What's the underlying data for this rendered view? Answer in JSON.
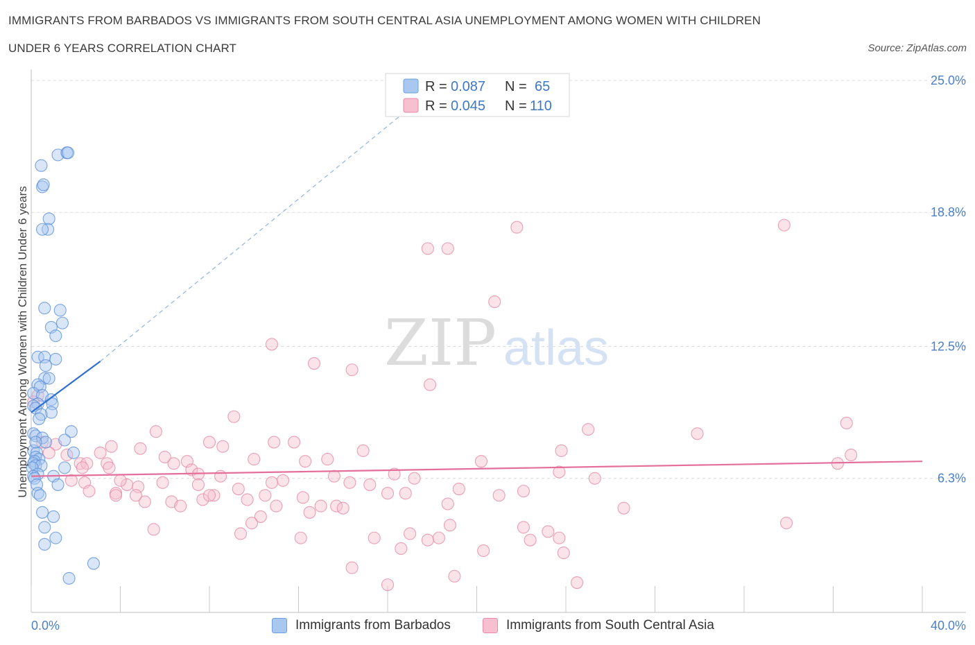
{
  "header": {
    "title_line1": "IMMIGRANTS FROM BARBADOS VS IMMIGRANTS FROM SOUTH CENTRAL ASIA UNEMPLOYMENT AMONG WOMEN WITH CHILDREN",
    "title_line2": "UNDER 6 YEARS CORRELATION CHART",
    "source": "Source: ZipAtlas.com"
  },
  "watermark": {
    "zip": "ZIP",
    "atlas": "atlas"
  },
  "legend_box": {
    "rows": [
      {
        "r_label": "R =",
        "r_value": "0.087",
        "n_label": "N =",
        "n_value": "65",
        "color": "#a9c8f0",
        "border": "#6a9fe0"
      },
      {
        "r_label": "R =",
        "r_value": "0.045",
        "n_label": "N =",
        "n_value": "110",
        "color": "#f7c0d0",
        "border": "#e98aa8"
      }
    ]
  },
  "colors": {
    "blue_fill": "#a9c8f0",
    "blue_stroke": "#5b8fd9",
    "blue_line": "#2f6fcf",
    "pink_fill": "#f7c0d0",
    "pink_stroke": "#e58aa8",
    "pink_line": "#e46f9a",
    "grid": "#dcdcdc",
    "tick_text": "#4a7fc9"
  },
  "chart_data": {
    "type": "scatter",
    "title": "IMMIGRANTS FROM BARBADOS VS IMMIGRANTS FROM SOUTH CENTRAL ASIA UNEMPLOYMENT AMONG WOMEN WITH CHILDREN UNDER 6 YEARS CORRELATION CHART",
    "xlabel": "",
    "ylabel": "Unemployment Among Women with Children Under 6 years",
    "xlim": [
      0,
      40
    ],
    "ylim": [
      0,
      25
    ],
    "x_tick_labels": [
      "0.0%",
      "40.0%"
    ],
    "y_ticks": [
      6.3,
      12.5,
      18.8,
      25.0
    ],
    "y_tick_labels": [
      "6.3%",
      "12.5%",
      "18.8%",
      "25.0%"
    ],
    "grid": true,
    "legend_position": "bottom",
    "series": [
      {
        "name": "Immigrants from Barbados",
        "color": "#a9c8f0",
        "trend": {
          "x": [
            0,
            3.1
          ],
          "y": [
            9.4,
            11.8
          ],
          "dashed_to": [
            18.5,
            25.0
          ]
        },
        "points": [
          [
            1.2,
            21.5
          ],
          [
            1.6,
            21.6
          ],
          [
            1.65,
            21.6
          ],
          [
            0.45,
            21.0
          ],
          [
            0.5,
            20.0
          ],
          [
            0.55,
            20.1
          ],
          [
            0.8,
            18.5
          ],
          [
            0.75,
            18.0
          ],
          [
            0.5,
            18.0
          ],
          [
            0.6,
            14.3
          ],
          [
            1.3,
            14.2
          ],
          [
            1.4,
            13.6
          ],
          [
            0.9,
            13.4
          ],
          [
            1.1,
            13.0
          ],
          [
            0.3,
            12.0
          ],
          [
            0.6,
            12.0
          ],
          [
            1.1,
            11.9
          ],
          [
            0.65,
            11.6
          ],
          [
            0.6,
            11.0
          ],
          [
            0.8,
            11.0
          ],
          [
            0.3,
            10.7
          ],
          [
            0.4,
            10.6
          ],
          [
            0.1,
            10.3
          ],
          [
            0.5,
            10.2
          ],
          [
            0.9,
            10.0
          ],
          [
            0.3,
            9.8
          ],
          [
            0.95,
            9.8
          ],
          [
            0.1,
            9.7
          ],
          [
            0.2,
            9.6
          ],
          [
            0.9,
            9.4
          ],
          [
            0.45,
            9.3
          ],
          [
            0.35,
            9.1
          ],
          [
            1.8,
            8.5
          ],
          [
            0.1,
            8.4
          ],
          [
            0.2,
            8.3
          ],
          [
            0.5,
            8.2
          ],
          [
            0.65,
            8.0
          ],
          [
            1.5,
            8.1
          ],
          [
            0.1,
            7.6
          ],
          [
            0.25,
            7.5
          ],
          [
            1.9,
            7.5
          ],
          [
            0.2,
            7.3
          ],
          [
            0.35,
            7.2
          ],
          [
            0.15,
            7.1
          ],
          [
            0.1,
            7.0
          ],
          [
            0.2,
            6.9
          ],
          [
            0.45,
            6.9
          ],
          [
            0.05,
            6.8
          ],
          [
            1.5,
            6.8
          ],
          [
            1.0,
            6.4
          ],
          [
            0.3,
            6.5
          ],
          [
            0.1,
            6.4
          ],
          [
            0.15,
            6.3
          ],
          [
            0.25,
            6.0
          ],
          [
            1.2,
            6.0
          ],
          [
            0.3,
            5.6
          ],
          [
            0.4,
            5.5
          ],
          [
            0.5,
            4.7
          ],
          [
            1.0,
            4.5
          ],
          [
            0.6,
            4.0
          ],
          [
            1.1,
            3.5
          ],
          [
            0.6,
            3.2
          ],
          [
            2.8,
            2.3
          ],
          [
            1.7,
            1.6
          ],
          [
            0.2,
            8.0
          ]
        ]
      },
      {
        "name": "Immigrants from South Central Asia",
        "color": "#f7c0d0",
        "trend": {
          "x": [
            0,
            40
          ],
          "y": [
            6.4,
            7.1
          ]
        },
        "points": [
          [
            21.8,
            18.1
          ],
          [
            33.8,
            18.2
          ],
          [
            17.8,
            17.1
          ],
          [
            18.7,
            17.1
          ],
          [
            20.8,
            14.6
          ],
          [
            10.8,
            12.6
          ],
          [
            12.7,
            11.7
          ],
          [
            14.4,
            11.4
          ],
          [
            17.9,
            10.7
          ],
          [
            0.3,
            10.2
          ],
          [
            0.1,
            9.9
          ],
          [
            9.1,
            9.2
          ],
          [
            36.6,
            8.9
          ],
          [
            25.0,
            8.6
          ],
          [
            29.9,
            8.4
          ],
          [
            5.6,
            8.5
          ],
          [
            0.5,
            8.0
          ],
          [
            1.1,
            7.9
          ],
          [
            8.0,
            8.0
          ],
          [
            10.9,
            8.0
          ],
          [
            11.8,
            8.0
          ],
          [
            8.6,
            7.8
          ],
          [
            3.6,
            7.8
          ],
          [
            4.9,
            7.7
          ],
          [
            14.9,
            7.6
          ],
          [
            23.8,
            7.6
          ],
          [
            0.8,
            7.5
          ],
          [
            6.0,
            7.3
          ],
          [
            1.6,
            7.4
          ],
          [
            2.2,
            7.0
          ],
          [
            3.1,
            7.5
          ],
          [
            36.8,
            7.4
          ],
          [
            10.0,
            7.2
          ],
          [
            12.3,
            7.1
          ],
          [
            13.3,
            7.2
          ],
          [
            20.2,
            7.1
          ],
          [
            6.4,
            7.0
          ],
          [
            7.0,
            7.1
          ],
          [
            36.2,
            7.0
          ],
          [
            2.5,
            7.0
          ],
          [
            3.4,
            7.0
          ],
          [
            2.3,
            6.8
          ],
          [
            7.2,
            6.7
          ],
          [
            3.5,
            6.8
          ],
          [
            7.5,
            6.5
          ],
          [
            8.5,
            6.4
          ],
          [
            13.6,
            6.4
          ],
          [
            16.3,
            6.5
          ],
          [
            17.2,
            6.3
          ],
          [
            23.7,
            6.6
          ],
          [
            25.3,
            6.3
          ],
          [
            5.9,
            6.1
          ],
          [
            11.3,
            6.2
          ],
          [
            14.3,
            6.1
          ],
          [
            15.2,
            6.0
          ],
          [
            2.4,
            6.1
          ],
          [
            4.3,
            6.0
          ],
          [
            4.0,
            6.2
          ],
          [
            7.5,
            6.0
          ],
          [
            9.3,
            5.8
          ],
          [
            4.8,
            5.9
          ],
          [
            1.8,
            6.2
          ],
          [
            2.6,
            5.7
          ],
          [
            3.8,
            5.6
          ],
          [
            10.8,
            6.1
          ],
          [
            16.0,
            5.6
          ],
          [
            16.8,
            5.6
          ],
          [
            19.2,
            5.8
          ],
          [
            21.0,
            5.5
          ],
          [
            22.1,
            5.7
          ],
          [
            8.2,
            5.5
          ],
          [
            10.5,
            5.5
          ],
          [
            12.2,
            5.4
          ],
          [
            3.8,
            5.5
          ],
          [
            5.1,
            5.2
          ],
          [
            6.3,
            5.2
          ],
          [
            7.7,
            5.3
          ],
          [
            9.7,
            5.3
          ],
          [
            6.7,
            5.0
          ],
          [
            11.0,
            5.0
          ],
          [
            13.0,
            5.0
          ],
          [
            13.7,
            5.0
          ],
          [
            14.0,
            4.9
          ],
          [
            18.7,
            5.1
          ],
          [
            26.6,
            4.9
          ],
          [
            10.3,
            4.5
          ],
          [
            12.5,
            4.7
          ],
          [
            9.9,
            4.2
          ],
          [
            18.8,
            4.1
          ],
          [
            22.1,
            4.0
          ],
          [
            33.9,
            4.2
          ],
          [
            5.5,
            3.9
          ],
          [
            23.2,
            3.8
          ],
          [
            9.4,
            3.7
          ],
          [
            17.0,
            3.7
          ],
          [
            17.8,
            3.4
          ],
          [
            18.3,
            3.5
          ],
          [
            12.1,
            3.5
          ],
          [
            15.4,
            3.5
          ],
          [
            22.4,
            3.4
          ],
          [
            23.7,
            3.5
          ],
          [
            16.6,
            3.0
          ],
          [
            20.3,
            2.9
          ],
          [
            23.9,
            2.8
          ],
          [
            14.4,
            2.1
          ],
          [
            19.0,
            1.7
          ],
          [
            16.0,
            1.3
          ],
          [
            24.5,
            1.4
          ],
          [
            4.7,
            5.5
          ],
          [
            8.0,
            5.5
          ]
        ]
      }
    ]
  }
}
